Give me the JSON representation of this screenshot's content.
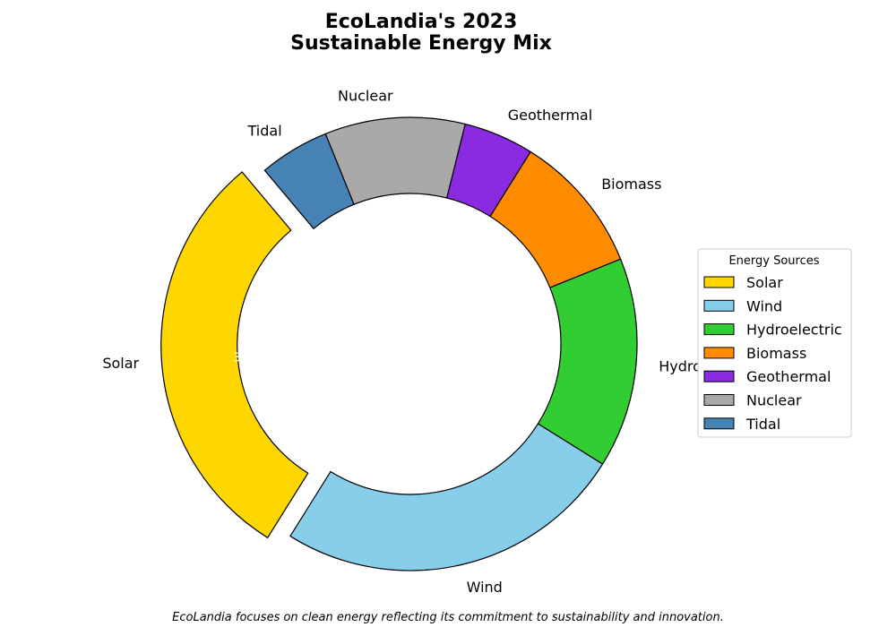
{
  "chart_data": {
    "type": "pie",
    "style": "donut",
    "title": [
      "EcoLandia's 2023",
      "Sustainable Energy Mix"
    ],
    "categories": [
      "Solar",
      "Wind",
      "Hydroelectric",
      "Biomass",
      "Geothermal",
      "Nuclear",
      "Tidal"
    ],
    "values": [
      30,
      25,
      15,
      10,
      5,
      10,
      5
    ],
    "colors": [
      "#FFD700",
      "#87CEEB",
      "#32CD32",
      "#FF8C00",
      "#8A2BE2",
      "#A9A9A9",
      "#4682B4"
    ],
    "explode": [
      0.1,
      0,
      0,
      0,
      0,
      0,
      0
    ],
    "percent_label_visible": "30.",
    "legend": {
      "title": "Energy Sources",
      "placement": "right",
      "entries": [
        "Solar",
        "Wind",
        "Hydroelectric",
        "Biomass",
        "Geothermal",
        "Nuclear",
        "Tidal"
      ]
    },
    "caption": "EcoLandia focuses on clean energy reflecting its commitment to sustainability and innovation."
  }
}
